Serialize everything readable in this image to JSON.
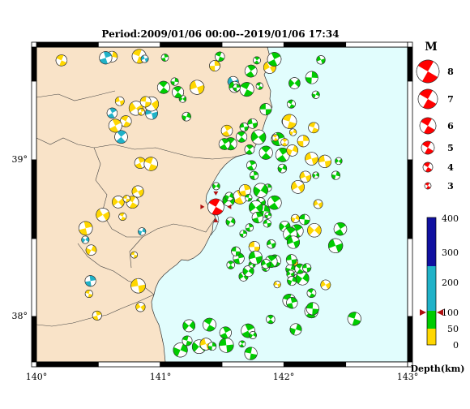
{
  "title": "Period:2009/01/06 00:00--2019/01/06 17:34",
  "x_ticks": [
    "140°",
    "141°",
    "142°",
    "143°"
  ],
  "y_ticks": [
    "39°",
    "38°"
  ],
  "magnitude": {
    "header": "M",
    "levels": [
      "8",
      "7",
      "6",
      "5",
      "4",
      "3"
    ]
  },
  "depth": {
    "label": "Depth(km)",
    "ticks": [
      "400",
      "300",
      "200",
      "100",
      "50",
      "0"
    ],
    "marker_value": 100
  },
  "colors": {
    "land": "#f9e3c8",
    "sea": "#e1fdfd",
    "shallow": "#ffd700",
    "mid": "#00cc00",
    "deep": "#20b2c8",
    "highlight": "#ff0000",
    "deepest": "#1010a0"
  },
  "highlight_event": {
    "lon": 141.45,
    "lat": 38.7,
    "mag": 7.0
  }
}
